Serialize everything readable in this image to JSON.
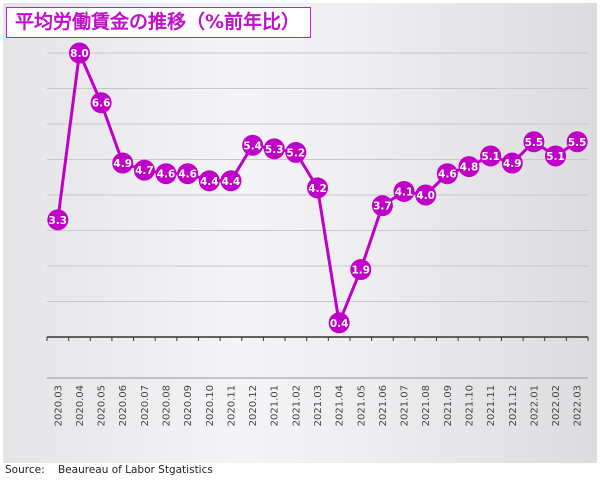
{
  "chart_data": {
    "type": "line",
    "title": "平均労働賃金の推移（%前年比）",
    "xlabel": "",
    "ylabel": "",
    "ylim": [
      0,
      8
    ],
    "grid": true,
    "categories": [
      "2020.03",
      "2020.04",
      "2020.05",
      "2020.06",
      "2020.07",
      "2020.08",
      "2020.09",
      "2020.10",
      "2020.11",
      "2020.12",
      "2021.01",
      "2021.02",
      "2021.03",
      "2021.04",
      "2021.05",
      "2021.06",
      "2021.07",
      "2021.08",
      "2021.09",
      "2021.10",
      "2021.11",
      "2021.12",
      "2022.01",
      "2022.02",
      "2022.03"
    ],
    "values": [
      3.3,
      8.0,
      6.6,
      4.9,
      4.7,
      4.6,
      4.6,
      4.4,
      4.4,
      5.4,
      5.3,
      5.2,
      4.2,
      0.4,
      1.9,
      3.7,
      4.1,
      4.0,
      4.6,
      4.8,
      5.1,
      4.9,
      5.5,
      5.1,
      5.5
    ],
    "labels": [
      "3.3",
      "8.0",
      "6.6",
      "4.9",
      "4.7",
      "4.6",
      "4.6",
      "4.4",
      "4.4",
      "5.4",
      "5.3",
      "5.2",
      "4.2",
      "0.4",
      "1.9",
      "3.7",
      "4.1",
      "4.0",
      "4.6",
      "4.8",
      "5.1",
      "4.9",
      "5.5",
      "5.1",
      "5.5"
    ],
    "color": "#c000c8"
  },
  "source": {
    "label": "Source:",
    "text": "Beaureau of Labor Stgatistics"
  }
}
